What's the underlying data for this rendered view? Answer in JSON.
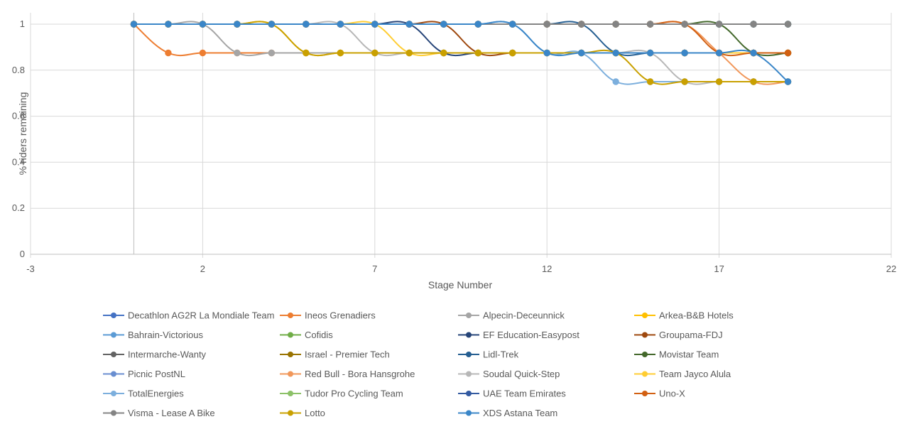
{
  "chart_data": {
    "type": "line",
    "title": "",
    "xlabel": "Stage Number",
    "ylabel": "% riders remaining",
    "xlim": [
      -3,
      22
    ],
    "ylim": [
      0,
      1
    ],
    "x_ticks": [
      "-3",
      "2",
      "7",
      "12",
      "17",
      "22"
    ],
    "y_ticks": [
      "0",
      "0.2",
      "0.4",
      "0.6",
      "0.8",
      "1"
    ],
    "x": [
      0,
      1,
      2,
      3,
      4,
      5,
      6,
      7,
      8,
      9,
      10,
      11,
      12,
      13,
      14,
      15,
      16,
      17,
      18,
      19
    ],
    "smooth": true,
    "markers": true,
    "grid": true,
    "legend_position": "bottom",
    "series": [
      {
        "name": "Decathlon AG2R La Mondiale Team",
        "color": "#4472C4",
        "values": [
          1,
          1,
          1,
          1,
          1,
          1,
          1,
          1,
          1,
          1,
          1,
          1,
          1,
          1,
          1,
          1,
          1,
          1,
          1,
          1
        ]
      },
      {
        "name": "Ineos Grenadiers",
        "color": "#ED7D31",
        "values": [
          1,
          0.875,
          0.875,
          0.875,
          0.875,
          0.875,
          0.875,
          0.875,
          0.875,
          0.875,
          0.875,
          0.875,
          0.875,
          0.875,
          0.875,
          0.875,
          0.875,
          0.875,
          0.875,
          0.875
        ]
      },
      {
        "name": "Alpecin-Deceunnick",
        "color": "#A5A5A5",
        "values": [
          1,
          1,
          1,
          0.875,
          0.875,
          0.875,
          0.875,
          0.875,
          0.875,
          0.875,
          0.875,
          0.875,
          0.875,
          0.875,
          0.875,
          0.875,
          0.875,
          0.875,
          0.875,
          0.875
        ]
      },
      {
        "name": "Arkea-B&B Hotels",
        "color": "#FFC000",
        "values": [
          1,
          1,
          1,
          1,
          1,
          0.875,
          0.875,
          0.875,
          0.875,
          0.875,
          0.875,
          0.875,
          0.875,
          0.875,
          0.875,
          0.875,
          0.875,
          0.875,
          0.875,
          0.875
        ]
      },
      {
        "name": "Bahrain-Victorious",
        "color": "#5B9BD5",
        "values": [
          1,
          1,
          1,
          1,
          1,
          1,
          1,
          1,
          1,
          1,
          1,
          1,
          1,
          1,
          1,
          1,
          1,
          1,
          1,
          1
        ]
      },
      {
        "name": "Cofidis",
        "color": "#70AD47",
        "values": [
          1,
          1,
          1,
          1,
          1,
          1,
          1,
          1,
          1,
          1,
          1,
          1,
          1,
          1,
          1,
          1,
          1,
          1,
          1,
          1
        ]
      },
      {
        "name": "EF Education-Easypost",
        "color": "#264478",
        "values": [
          1,
          1,
          1,
          1,
          1,
          1,
          1,
          1,
          1,
          0.875,
          0.875,
          0.875,
          0.875,
          0.875,
          0.875,
          0.875,
          0.875,
          0.875,
          0.875,
          0.875
        ]
      },
      {
        "name": "Groupama-FDJ",
        "color": "#9E480E",
        "values": [
          1,
          1,
          1,
          1,
          1,
          1,
          1,
          1,
          1,
          1,
          0.875,
          0.875,
          0.875,
          0.875,
          0.875,
          0.875,
          0.875,
          0.875,
          0.875,
          0.875
        ]
      },
      {
        "name": "Intermarche-Wanty",
        "color": "#636363",
        "values": [
          1,
          1,
          1,
          1,
          1,
          1,
          1,
          1,
          1,
          1,
          1,
          1,
          1,
          1,
          1,
          1,
          1,
          1,
          1,
          1
        ]
      },
      {
        "name": "Israel - Premier Tech",
        "color": "#997300",
        "values": [
          1,
          1,
          1,
          1,
          1,
          1,
          1,
          1,
          1,
          1,
          1,
          1,
          1,
          1,
          1,
          1,
          1,
          1,
          1,
          1
        ]
      },
      {
        "name": "Lidl-Trek",
        "color": "#255E91",
        "values": [
          1,
          1,
          1,
          1,
          1,
          1,
          1,
          1,
          1,
          1,
          1,
          1,
          1,
          1,
          0.875,
          0.875,
          0.875,
          0.875,
          0.875,
          0.875
        ]
      },
      {
        "name": "Movistar Team",
        "color": "#43682B",
        "values": [
          1,
          1,
          1,
          1,
          1,
          1,
          1,
          1,
          1,
          1,
          1,
          1,
          1,
          1,
          1,
          1,
          1,
          1,
          0.875,
          0.875
        ]
      },
      {
        "name": "Picnic PostNL",
        "color": "#698ED0",
        "values": [
          1,
          1,
          1,
          1,
          1,
          1,
          1,
          1,
          1,
          1,
          1,
          1,
          1,
          1,
          1,
          1,
          1,
          1,
          1,
          1
        ]
      },
      {
        "name": "Red Bull - Bora Hansgrohe",
        "color": "#F1975A",
        "values": [
          1,
          1,
          1,
          1,
          1,
          1,
          1,
          1,
          1,
          1,
          1,
          1,
          1,
          1,
          1,
          1,
          1,
          0.875,
          0.75,
          0.75
        ]
      },
      {
        "name": "Soudal Quick-Step",
        "color": "#B7B7B7",
        "values": [
          1,
          1,
          1,
          1,
          1,
          1,
          1,
          0.875,
          0.875,
          0.875,
          0.875,
          0.875,
          0.875,
          0.875,
          0.875,
          0.875,
          0.75,
          0.75,
          0.75,
          0.75
        ]
      },
      {
        "name": "Team Jayco Alula",
        "color": "#FFCD33",
        "values": [
          1,
          1,
          1,
          1,
          1,
          1,
          1,
          1,
          0.875,
          0.875,
          0.875,
          0.875,
          0.875,
          0.875,
          0.875,
          0.875,
          0.875,
          0.875,
          0.875,
          0.875
        ]
      },
      {
        "name": "TotalEnergies",
        "color": "#7CAFDD",
        "values": [
          1,
          1,
          1,
          1,
          1,
          1,
          1,
          1,
          1,
          1,
          1,
          1,
          0.875,
          0.875,
          0.75,
          0.75,
          0.75,
          0.75,
          0.75,
          0.75
        ]
      },
      {
        "name": "Tudor Pro Cycling Team",
        "color": "#8CC168",
        "values": [
          1,
          1,
          1,
          1,
          1,
          1,
          1,
          1,
          1,
          1,
          1,
          1,
          1,
          1,
          1,
          1,
          1,
          1,
          1,
          1
        ]
      },
      {
        "name": "UAE Team Emirates",
        "color": "#335AA1",
        "values": [
          1,
          1,
          1,
          1,
          1,
          1,
          1,
          1,
          1,
          1,
          1,
          1,
          1,
          1,
          1,
          1,
          1,
          1,
          1,
          1
        ]
      },
      {
        "name": "Uno-X",
        "color": "#D26012",
        "values": [
          1,
          1,
          1,
          1,
          1,
          1,
          1,
          1,
          1,
          1,
          1,
          1,
          1,
          1,
          1,
          1,
          1,
          0.875,
          0.875,
          0.875
        ]
      },
      {
        "name": "Visma - Lease A Bike",
        "color": "#848484",
        "values": [
          1,
          1,
          1,
          1,
          1,
          1,
          1,
          1,
          1,
          1,
          1,
          1,
          1,
          1,
          1,
          1,
          1,
          1,
          1,
          1
        ]
      },
      {
        "name": "Lotto",
        "color": "#C9A000",
        "values": [
          1,
          1,
          1,
          1,
          1,
          0.875,
          0.875,
          0.875,
          0.875,
          0.875,
          0.875,
          0.875,
          0.875,
          0.875,
          0.875,
          0.75,
          0.75,
          0.75,
          0.75,
          0.75
        ]
      },
      {
        "name": "XDS Astana Team",
        "color": "#3A86C8",
        "values": [
          1,
          1,
          1,
          1,
          1,
          1,
          1,
          1,
          1,
          1,
          1,
          1,
          0.875,
          0.875,
          0.875,
          0.875,
          0.875,
          0.875,
          0.875,
          0.75
        ]
      }
    ]
  }
}
